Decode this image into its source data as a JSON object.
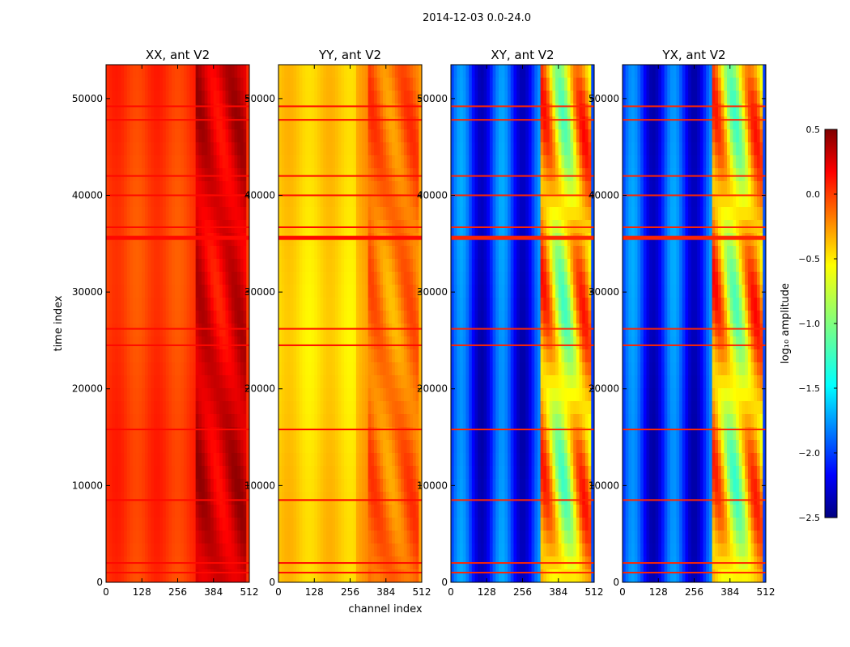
{
  "chart_data": {
    "type": "heatmap",
    "suptitle": "2014-12-03 0.0-24.0",
    "xlabel": "channel index",
    "ylabel": "time index",
    "xlim": [
      0,
      512
    ],
    "ylim": [
      0,
      53500
    ],
    "xticks": [
      "0",
      "128",
      "256",
      "384",
      "512"
    ],
    "xtick_values": [
      0,
      128,
      256,
      384,
      512
    ],
    "yticks": [
      "0",
      "10000",
      "20000",
      "30000",
      "40000",
      "50000"
    ],
    "ytick_values": [
      0,
      10000,
      20000,
      30000,
      40000,
      50000
    ],
    "panels": [
      {
        "title": "XX, ant V2",
        "base_level": -0.05
      },
      {
        "title": "YY, ant V2",
        "base_level": -0.5
      },
      {
        "title": "XY, ant V2",
        "base_level": -2.0
      },
      {
        "title": "YX, ant V2",
        "base_level": -2.0
      }
    ],
    "flagged_rows": [
      1000,
      2000,
      8500,
      15800,
      24500,
      26200,
      35600,
      36700,
      40000,
      42000,
      47800,
      49200
    ],
    "strong_band_channels": [
      325,
      500
    ],
    "colorbar": {
      "label": "log₁₀ amplitude",
      "colormap": "jet",
      "vmin": -2.5,
      "vmax": 0.5,
      "ticks": [
        "0.5",
        "0.0",
        "−0.5",
        "−1.0",
        "−1.5",
        "−2.0",
        "−2.5"
      ],
      "tick_values": [
        0.5,
        0.0,
        -0.5,
        -1.0,
        -1.5,
        -2.0,
        -2.5
      ]
    }
  }
}
